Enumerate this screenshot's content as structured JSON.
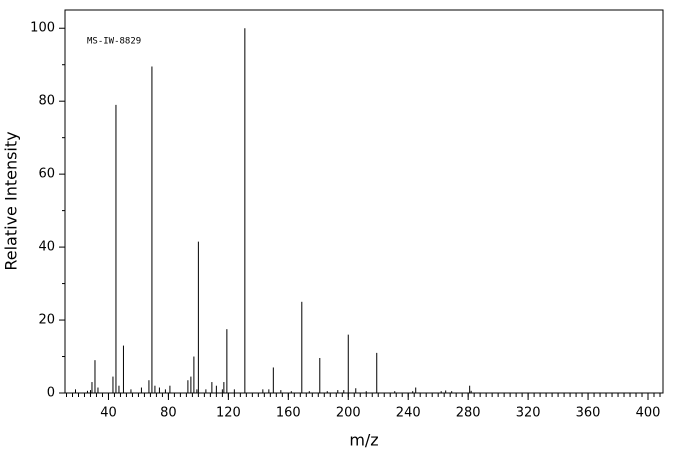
{
  "chart_data": {
    "type": "bar",
    "annotation": "MS-IW-8829",
    "x_label": "m/z",
    "y_label": "Relative Intensity",
    "color": "#000000",
    "x": [
      18,
      26,
      28,
      29,
      31,
      33,
      43,
      45,
      47,
      50,
      55,
      62,
      67,
      69,
      71,
      74,
      78,
      81,
      93,
      95,
      97,
      99,
      100,
      105,
      109,
      112,
      116,
      117,
      119,
      124,
      131,
      143,
      147,
      150,
      155,
      162,
      169,
      174,
      181,
      186,
      193,
      197,
      200,
      205,
      212,
      219,
      231,
      243,
      245,
      262,
      265,
      269,
      281,
      282
    ],
    "values": [
      1,
      0.6,
      0.8,
      3,
      9,
      1.5,
      4.5,
      79,
      2,
      13,
      1,
      1.5,
      3.5,
      89.5,
      2,
      1.5,
      1,
      2,
      3.5,
      4.5,
      10,
      1,
      41.5,
      1,
      3,
      2,
      1,
      3,
      17.5,
      1,
      100,
      1,
      1,
      7,
      0.8,
      0.5,
      25,
      0.5,
      9.6,
      0.5,
      0.8,
      0.8,
      16,
      1.3,
      0.5,
      11,
      0.5,
      0.5,
      1.5,
      0.5,
      0.7,
      0.5,
      2,
      0.6
    ],
    "xlim": [
      11,
      410
    ],
    "xticks": [
      40,
      80,
      120,
      160,
      200,
      240,
      280,
      320,
      360,
      400
    ],
    "ylim": [
      0,
      105
    ],
    "yticks": [
      0,
      20,
      40,
      60,
      80,
      100
    ]
  }
}
